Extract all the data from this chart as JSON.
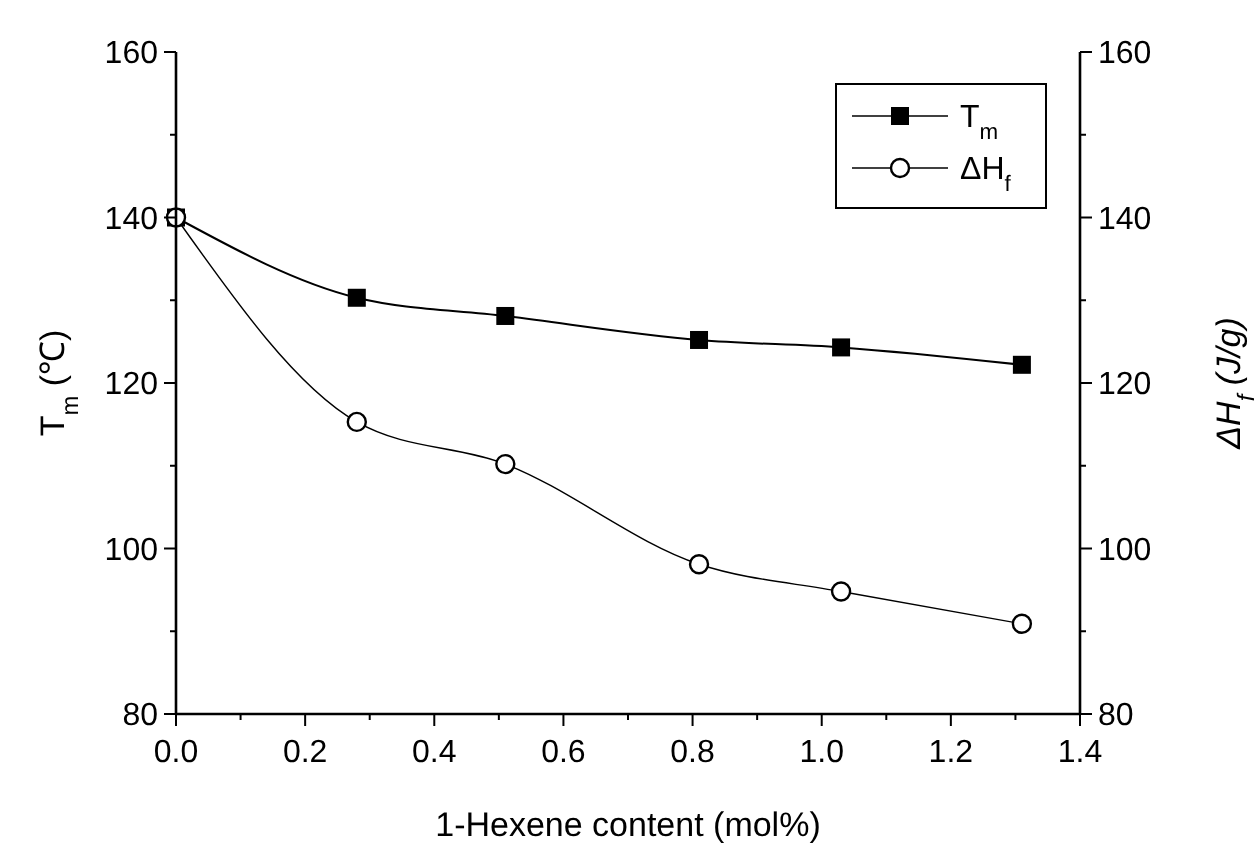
{
  "chart_data": {
    "type": "line",
    "xlabel": "1-Hexene content (mol%)",
    "ylabel": "T$_{m}$ (℃)",
    "y2label": "ΔH$_{f}$ (J/g)",
    "xlim": [
      0,
      1.4
    ],
    "xticks": [
      {
        "value": 0,
        "label": "0.0"
      },
      {
        "value": 0.1,
        "label": null
      },
      0.2,
      {
        "value": 0.3,
        "label": null
      },
      0.4,
      {
        "value": 0.5,
        "label": null
      },
      0.6,
      {
        "value": 0.7,
        "label": null
      },
      0.8,
      {
        "value": 0.9,
        "label": null
      },
      {
        "value": 1,
        "label": "1.0"
      },
      {
        "value": 1.1,
        "label": null
      },
      1.2,
      {
        "value": 1.3,
        "label": null
      },
      1.4
    ],
    "ylim": [
      80,
      160
    ],
    "yticks": [
      80,
      {
        "value": 90,
        "label": null
      },
      100,
      {
        "value": 110,
        "label": null
      },
      120,
      {
        "value": 130,
        "label": null
      },
      140,
      {
        "value": 150,
        "label": null
      },
      160
    ],
    "y2lim": [
      80,
      160
    ],
    "y2ticks": [
      80,
      {
        "value": 90,
        "label": null
      },
      100,
      {
        "value": 110,
        "label": null
      },
      120,
      {
        "value": 130,
        "label": null
      },
      140,
      {
        "value": 150,
        "label": null
      },
      160
    ],
    "grid": false,
    "legend": "top right",
    "line_style": "solid",
    "series": [
      {
        "name": "T$_{m}$",
        "color": "#000000",
        "marker": "square",
        "x": [
          0,
          0.28,
          0.51,
          0.81,
          1.03,
          1.31
        ],
        "values": [
          140,
          130.3,
          128.1,
          125.2,
          124.3,
          122.2
        ]
      },
      {
        "name": "ΔH$_{f}$",
        "color": "#000000",
        "marker": "circle",
        "axis": "y2",
        "x": [
          0,
          0.28,
          0.51,
          0.81,
          1.03,
          1.31
        ],
        "values": [
          140,
          115.3,
          110.2,
          98.1,
          94.8,
          90.9
        ]
      }
    ]
  }
}
